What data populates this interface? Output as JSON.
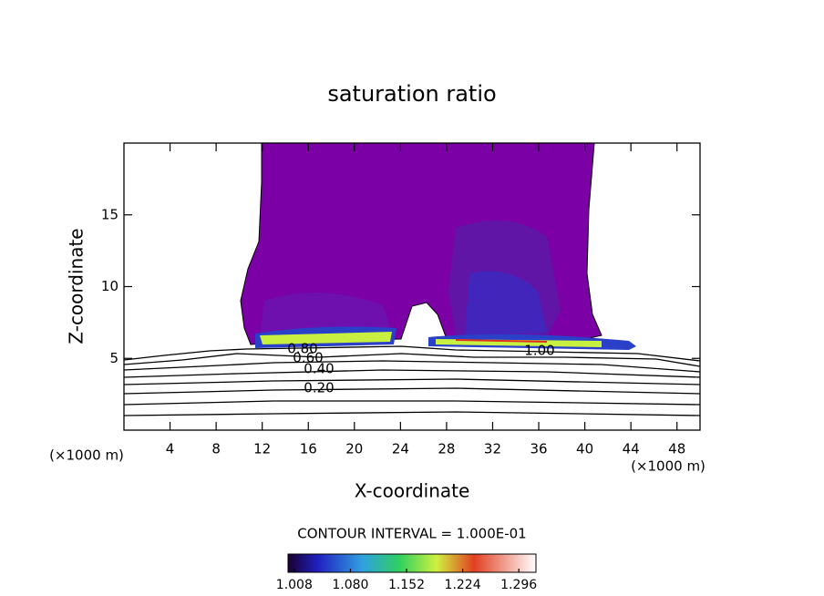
{
  "chart_data": {
    "type": "contour",
    "title": "saturation ratio",
    "x_label": "X-coordinate",
    "y_label": "Z-coordinate",
    "x_unit_label": "(×1000 m)",
    "xlim": [
      0,
      50
    ],
    "ylim": [
      0,
      20
    ],
    "xticks": [
      4,
      8,
      12,
      16,
      20,
      24,
      28,
      32,
      36,
      40,
      44,
      48
    ],
    "yticks": [
      5,
      10,
      15
    ],
    "contour_labels": [
      "0.20",
      "0.40",
      "0.60",
      "0.80",
      "1.00"
    ],
    "contour_interval": "CONTOUR INTERVAL = 1.000E-01",
    "colorbar": {
      "clim": [
        1.0,
        1.318
      ],
      "ticks": [
        {
          "value": 1.008,
          "label": "1.008"
        },
        {
          "value": 1.08,
          "label": "1.080"
        },
        {
          "value": 1.152,
          "label": "1.152"
        },
        {
          "value": 1.224,
          "label": "1.224"
        },
        {
          "value": 1.296,
          "label": "1.296"
        }
      ]
    }
  }
}
